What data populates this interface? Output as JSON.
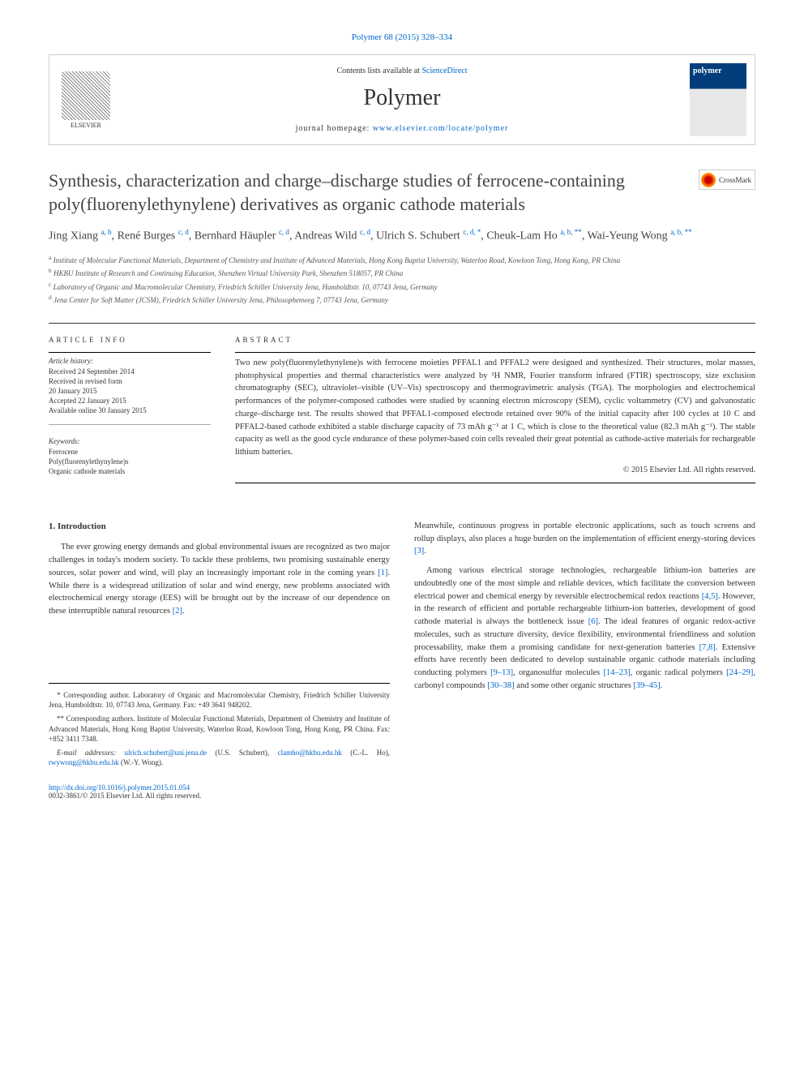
{
  "top_link": "Polymer 68 (2015) 328–334",
  "header": {
    "contents_text": "Contents lists available at ",
    "contents_link": "ScienceDirect",
    "journal_name": "Polymer",
    "homepage_label": "journal homepage: ",
    "homepage_url": "www.elsevier.com/locate/polymer",
    "elsevier_name": "ELSEVIER",
    "cover_text": "polymer"
  },
  "title": "Synthesis, characterization and charge–discharge studies of ferrocene-containing poly(fluorenylethynylene) derivatives as organic cathode materials",
  "crossmark_text": "CrossMark",
  "authors_html": "Jing Xiang <sup>a, b</sup>, René Burges <sup>c, d</sup>, Bernhard Häupler <sup>c, d</sup>, Andreas Wild <sup>c, d</sup>, Ulrich S. Schubert <sup>c, d, *</sup>, Cheuk-Lam Ho <sup>a, b, **</sup>, Wai-Yeung Wong <sup>a, b, **</sup>",
  "affiliations": [
    {
      "sup": "a",
      "text": "Institute of Molecular Functional Materials, Department of Chemistry and Institute of Advanced Materials, Hong Kong Baptist University, Waterloo Road, Kowloon Tong, Hong Kong, PR China"
    },
    {
      "sup": "b",
      "text": "HKBU Institute of Research and Continuing Education, Shenzhen Virtual University Park, Shenzhen 518057, PR China"
    },
    {
      "sup": "c",
      "text": "Laboratory of Organic and Macromolecular Chemistry, Friedrich Schiller University Jena, Humboldtstr. 10, 07743 Jena, Germany"
    },
    {
      "sup": "d",
      "text": "Jena Center for Soft Matter (JCSM), Friedrich Schiller University Jena, Philosophenweg 7, 07743 Jena, Germany"
    }
  ],
  "article_info": {
    "heading": "ARTICLE INFO",
    "history_label": "Article history:",
    "history": [
      "Received 24 September 2014",
      "Received in revised form",
      "20 January 2015",
      "Accepted 22 January 2015",
      "Available online 30 January 2015"
    ],
    "keywords_label": "Keywords:",
    "keywords": [
      "Ferrocene",
      "Poly(fluorenylethynylene)s",
      "Organic cathode materials"
    ]
  },
  "abstract": {
    "heading": "ABSTRACT",
    "text": "Two new poly(fluorenylethynylene)s with ferrocene moieties PFFAL1 and PFFAL2 were designed and synthesized. Their structures, molar masses, photophysical properties and thermal characteristics were analyzed by ¹H NMR, Fourier transform infrared (FTIR) spectroscopy, size exclusion chromatography (SEC), ultraviolet–visible (UV–Vis) spectroscopy and thermogravimetric analysis (TGA). The morphologies and electrochemical performances of the polymer-composed cathodes were studied by scanning electron microscopy (SEM), cyclic voltammetry (CV) and galvanostatic charge–discharge test. The results showed that PFFAL1-composed electrode retained over 90% of the initial capacity after 100 cycles at 10 C and PFFAL2-based cathode exhibited a stable discharge capacity of 73 mAh g⁻¹ at 1 C, which is close to the theoretical value (82.3 mAh g⁻¹). The stable capacity as well as the good cycle endurance of these polymer-based coin cells revealed their great potential as cathode-active materials for rechargeable lithium batteries.",
    "copyright": "© 2015 Elsevier Ltd. All rights reserved."
  },
  "intro": {
    "heading": "1. Introduction",
    "para1_pre": "The ever growing energy demands and global environmental issues are recognized as two major challenges in today's modern society. To tackle these problems, two promising sustainable energy sources, solar power and wind, will play an increasingly important role in the coming years ",
    "ref1": "[1]",
    "para1_mid": ". While there is a widespread utilization of solar and wind energy, new problems associated with electrochemical energy storage (EES) will be brought out by the increase of our dependence on these interruptible natural resources ",
    "ref2": "[2]",
    "para1_end": ".",
    "para2_pre": "Meanwhile, continuous progress in portable electronic applications, such as touch screens and rollup displays, also places a huge burden on the implementation of efficient energy-storing devices ",
    "ref3": "[3]",
    "para2_end": ".",
    "para3_pre": "Among various electrical storage technologies, rechargeable lithium-ion batteries are undoubtedly one of the most simple and reliable devices, which facilitate the conversion between electrical power and chemical energy by reversible electrochemical redox reactions ",
    "ref45": "[4,5]",
    "para3_mid1": ". However, in the research of efficient and portable rechargeable lithium-ion batteries, development of good cathode material is always the bottleneck issue ",
    "ref6": "[6]",
    "para3_mid2": ". The ideal features of organic redox-active molecules, such as structure diversity, device flexibility, environmental friendliness and solution processability, make them a promising candidate for next-generation batteries ",
    "ref78": "[7,8]",
    "para3_mid3": ". Extensive efforts have recently been dedicated to develop sustainable organic cathode materials including conducting polymers ",
    "ref913": "[9–13]",
    "para3_mid4": ", organosulfur molecules ",
    "ref1423": "[14–23]",
    "para3_mid5": ", organic radical polymers ",
    "ref2429": "[24–29]",
    "para3_mid6": ", carbonyl compounds ",
    "ref3038": "[30–38]",
    "para3_mid7": " and some other organic structures ",
    "ref3945": "[39–45]",
    "para3_end": "."
  },
  "footer": {
    "corr1": "* Corresponding author. Laboratory of Organic and Macromolecular Chemistry, Friedrich Schiller University Jena, Humboldtstr. 10, 07743 Jena, Germany. Fax: +49 3641 948202.",
    "corr2": "** Corresponding authors. Institute of Molecular Functional Materials, Department of Chemistry and Institute of Advanced Materials, Hong Kong Baptist University, Waterloo Road, Kowloon Tong, Hong Kong, PR China. Fax: +852 3411 7348.",
    "email_label": "E-mail addresses: ",
    "email1": "ulrich.schubert@uni.jena.de",
    "email1_name": " (U.S. Schubert), ",
    "email2": "clamho@hkbu.edu.hk",
    "email2_name": " (C.-L. Ho), ",
    "email3": "rwywong@hkbu.edu.hk",
    "email3_name": " (W.-Y. Wong).",
    "doi": "http://dx.doi.org/10.1016/j.polymer.2015.01.054",
    "issn": "0032-3861/© 2015 Elsevier Ltd. All rights reserved."
  }
}
